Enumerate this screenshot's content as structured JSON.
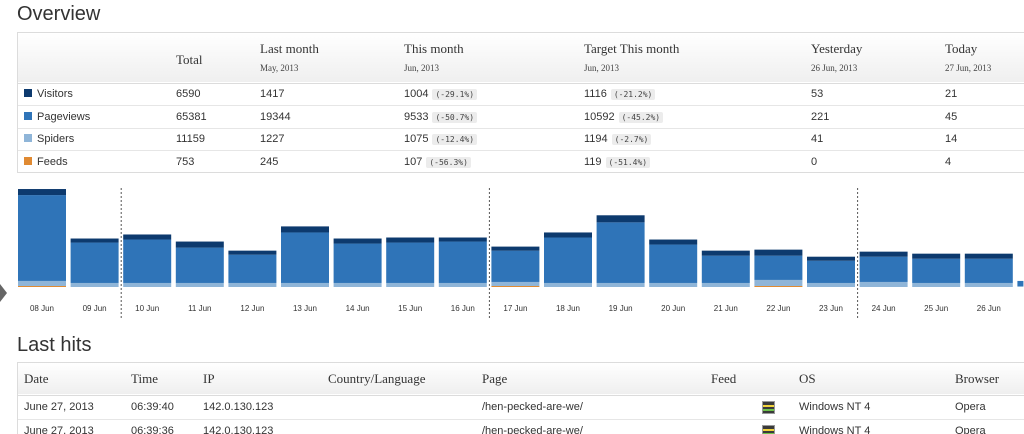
{
  "overview": {
    "title": "Overview",
    "headers": [
      {
        "label": "",
        "sub": ""
      },
      {
        "label": "Total",
        "sub": ""
      },
      {
        "label": "Last month",
        "sub": "May, 2013"
      },
      {
        "label": "This month",
        "sub": "Jun, 2013"
      },
      {
        "label": "Target This month",
        "sub": "Jun, 2013"
      },
      {
        "label": "Yesterday",
        "sub": "26 Jun, 2013"
      },
      {
        "label": "Today",
        "sub": "27 Jun, 2013"
      }
    ],
    "rows": [
      {
        "label": "Visitors",
        "color": "#0d3a6e",
        "total": "6590",
        "last_month": "1417",
        "this_month": "1004",
        "this_pct": "(-29.1%)",
        "target": "1116",
        "target_pct": "(-21.2%)",
        "yesterday": "53",
        "today": "21"
      },
      {
        "label": "Pageviews",
        "color": "#2f74b8",
        "total": "65381",
        "last_month": "19344",
        "this_month": "9533",
        "this_pct": "(-50.7%)",
        "target": "10592",
        "target_pct": "(-45.2%)",
        "yesterday": "221",
        "today": "45"
      },
      {
        "label": "Spiders",
        "color": "#8fb5d8",
        "total": "11159",
        "last_month": "1227",
        "this_month": "1075",
        "this_pct": "(-12.4%)",
        "target": "1194",
        "target_pct": "(-2.7%)",
        "yesterday": "41",
        "today": "14"
      },
      {
        "label": "Feeds",
        "color": "#e08a32",
        "total": "753",
        "last_month": "245",
        "this_month": "107",
        "this_pct": "(-56.3%)",
        "target": "119",
        "target_pct": "(-51.4%)",
        "yesterday": "0",
        "today": "4"
      }
    ]
  },
  "chart_data": {
    "type": "bar",
    "categories": [
      "08 Jun",
      "09 Jun",
      "10 Jun",
      "11 Jun",
      "12 Jun",
      "13 Jun",
      "14 Jun",
      "15 Jun",
      "16 Jun",
      "17 Jun",
      "18 Jun",
      "19 Jun",
      "20 Jun",
      "21 Jun",
      "22 Jun",
      "23 Jun",
      "24 Jun",
      "25 Jun",
      "26 Jun",
      ""
    ],
    "series": [
      {
        "name": "Visitors",
        "color": "#0d3a6e",
        "values": [
          6,
          4,
          5,
          6,
          4,
          6,
          5,
          5,
          4,
          4,
          5,
          7,
          5,
          5,
          6,
          4,
          5,
          5,
          5,
          0
        ]
      },
      {
        "name": "Pageviews",
        "color": "#2f74b8",
        "values": [
          85,
          40,
          43,
          35,
          28,
          50,
          39,
          40,
          41,
          31,
          45,
          60,
          38,
          27,
          24,
          22,
          25,
          24,
          24,
          5
        ]
      },
      {
        "name": "Spiders",
        "color": "#8fb5d8",
        "values": [
          5,
          4,
          4,
          4,
          4,
          4,
          4,
          4,
          4,
          4,
          4,
          4,
          4,
          4,
          6,
          4,
          5,
          4,
          4,
          1
        ]
      },
      {
        "name": "Feeds",
        "color": "#e08a32",
        "values": [
          1,
          0,
          0,
          0,
          0,
          0,
          0,
          0,
          0,
          1,
          0,
          0,
          0,
          0,
          1,
          0,
          0,
          0,
          0,
          0
        ]
      }
    ],
    "week_separators_after": [
      "09 Jun",
      "16 Jun",
      "23 Jun"
    ],
    "ylim": [
      0,
      100
    ]
  },
  "last_hits": {
    "title": "Last hits",
    "headers": [
      "Date",
      "Time",
      "IP",
      "Country/Language",
      "Page",
      "Feed",
      "OS",
      "Browser"
    ],
    "rows": [
      {
        "date": "June 27, 2013",
        "time": "06:39:40",
        "ip": "142.0.130.123",
        "country": "",
        "page": "/hen-pecked-are-we/",
        "feed_icon": "feed-icon",
        "os": "Windows NT 4",
        "browser_icon": "opera-icon",
        "browser": "Opera"
      },
      {
        "date": "June 27, 2013",
        "time": "06:39:36",
        "ip": "142.0.130.123",
        "country": "",
        "page": "/hen-pecked-are-we/",
        "feed_icon": "feed-icon",
        "os": "Windows NT 4",
        "browser_icon": "opera-icon",
        "browser": "Opera"
      }
    ]
  }
}
